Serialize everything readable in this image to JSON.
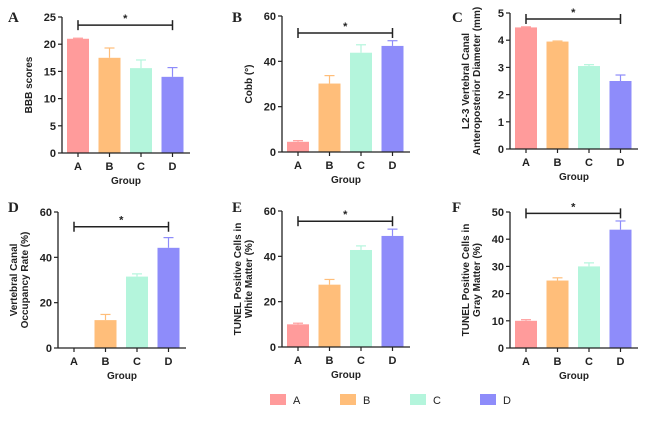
{
  "colors": {
    "A": "#ff9b9b",
    "B": "#ffbe7a",
    "C": "#b4f5dc",
    "D": "#8e8cfa"
  },
  "legend": [
    "A",
    "B",
    "C",
    "D"
  ],
  "chart_data": [
    {
      "type": "bar",
      "panel": "A",
      "categories": [
        "A",
        "B",
        "C",
        "D"
      ],
      "values": [
        21,
        17.5,
        15.6,
        14
      ],
      "errors": [
        0.1,
        1.8,
        1.5,
        1.7
      ],
      "xlabel": "Group",
      "ylabel": [
        "BBB scores"
      ],
      "ylim": [
        0,
        25
      ],
      "yticks": [
        0,
        5,
        10,
        15,
        20,
        25
      ],
      "significance": {
        "from": "A",
        "to": "D",
        "label": "*",
        "y": 23.5
      }
    },
    {
      "type": "bar",
      "panel": "B",
      "categories": [
        "A",
        "B",
        "C",
        "D"
      ],
      "values": [
        4.5,
        30.2,
        43.8,
        46.8
      ],
      "errors": [
        0.5,
        3.5,
        3.5,
        2.3
      ],
      "xlabel": "Group",
      "ylabel": [
        "Cobb (°)"
      ],
      "ylim": [
        0,
        60
      ],
      "yticks": [
        0,
        20,
        40,
        60
      ],
      "significance": {
        "from": "A",
        "to": "D",
        "label": "*",
        "y": 52.5
      }
    },
    {
      "type": "bar",
      "panel": "C",
      "categories": [
        "A",
        "B",
        "C",
        "D"
      ],
      "values": [
        4.47,
        3.95,
        3.05,
        2.5
      ],
      "errors": [
        0.02,
        0.02,
        0.05,
        0.22
      ],
      "xlabel": "Group",
      "ylabel": [
        "L2-3 Vertebral Canal",
        "Anteroposterior Diameter (mm)"
      ],
      "ylim": [
        0,
        5
      ],
      "yticks": [
        0,
        1,
        2,
        3,
        4,
        5
      ],
      "significance": {
        "from": "A",
        "to": "D",
        "label": "*",
        "y": 4.78
      }
    },
    {
      "type": "bar",
      "panel": "D",
      "categories": [
        "A",
        "B",
        "C",
        "D"
      ],
      "values": [
        0,
        12.3,
        31.5,
        44.2
      ],
      "errors": [
        0,
        2.5,
        1.2,
        4.5
      ],
      "xlabel": "Group",
      "ylabel": [
        "Vertebral Canal",
        "Occupancy Rate (%)"
      ],
      "ylim": [
        0,
        60
      ],
      "yticks": [
        0,
        20,
        40,
        60
      ],
      "significance": {
        "from": "A",
        "to": "D",
        "label": "*",
        "y": 53.5
      }
    },
    {
      "type": "bar",
      "panel": "E",
      "categories": [
        "A",
        "B",
        "C",
        "D"
      ],
      "values": [
        10,
        27.5,
        42.8,
        49
      ],
      "errors": [
        0.5,
        2.3,
        1.8,
        3
      ],
      "xlabel": "Group",
      "ylabel": [
        "TUNEL Positive Cells in",
        "White Matter (%)"
      ],
      "ylim": [
        0,
        60
      ],
      "yticks": [
        0,
        20,
        40,
        60
      ],
      "significance": {
        "from": "A",
        "to": "D",
        "label": "*",
        "y": 55.5
      }
    },
    {
      "type": "bar",
      "panel": "F",
      "categories": [
        "A",
        "B",
        "C",
        "D"
      ],
      "values": [
        10,
        24.8,
        30,
        43.5
      ],
      "errors": [
        0.4,
        1,
        1.3,
        3.2
      ],
      "xlabel": "Group",
      "ylabel": [
        "TUNEL Positive Cells in",
        "Gray Matter (%)"
      ],
      "ylim": [
        0,
        50
      ],
      "yticks": [
        0,
        10,
        20,
        30,
        40,
        50
      ],
      "significance": {
        "from": "A",
        "to": "D",
        "label": "*",
        "y": 49.5
      }
    }
  ]
}
